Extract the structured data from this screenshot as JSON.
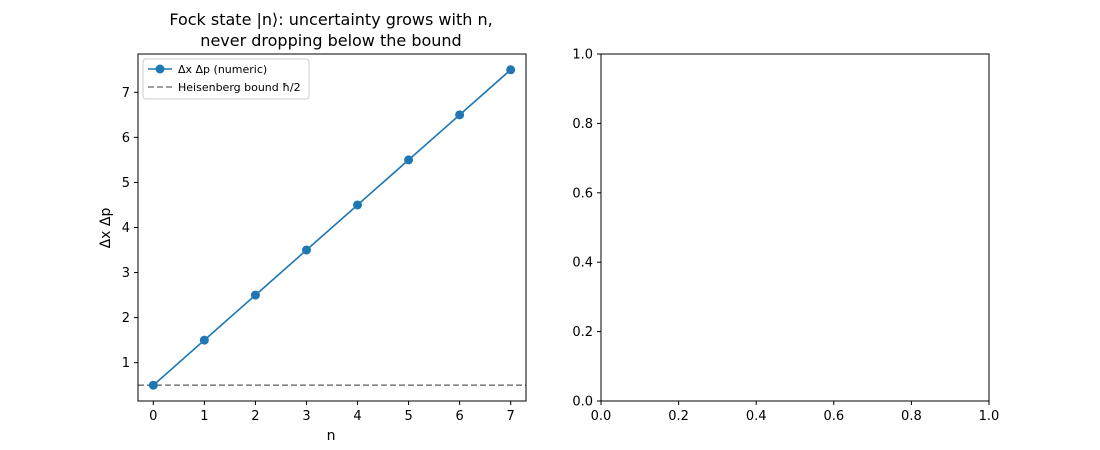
{
  "chart_data": [
    {
      "type": "line",
      "title_line1": "Fock state |n⟩: uncertainty grows with n,",
      "title_line2": "never dropping below the bound",
      "xlabel": "n",
      "ylabel": "Δx Δp",
      "xlim": [
        -0.3,
        7.3
      ],
      "ylim": [
        0.15,
        7.85
      ],
      "xticks": [
        0,
        1,
        2,
        3,
        4,
        5,
        6,
        7
      ],
      "yticks": [
        1,
        2,
        3,
        4,
        5,
        6,
        7
      ],
      "grid": false,
      "legend_position": "top-left",
      "series": [
        {
          "name": "Δx Δp (numeric)",
          "color": "#1f77b4",
          "style": "solid-with-circle-markers",
          "x": [
            0,
            1,
            2,
            3,
            4,
            5,
            6,
            7
          ],
          "y": [
            0.5,
            1.5,
            2.5,
            3.5,
            4.5,
            5.5,
            6.5,
            7.5
          ]
        }
      ],
      "reference_line": {
        "name": "Heisenberg bound ħ/2",
        "y": 0.5,
        "color": "#808080",
        "style": "dashed"
      }
    },
    {
      "type": "line",
      "title": "",
      "xlabel": "",
      "ylabel": "",
      "xlim": [
        0,
        1
      ],
      "ylim": [
        0,
        1
      ],
      "xticks": [
        0.0,
        0.2,
        0.4,
        0.6,
        0.8,
        1.0
      ],
      "yticks": [
        0.0,
        0.2,
        0.4,
        0.6,
        0.8,
        1.0
      ],
      "series": []
    }
  ]
}
